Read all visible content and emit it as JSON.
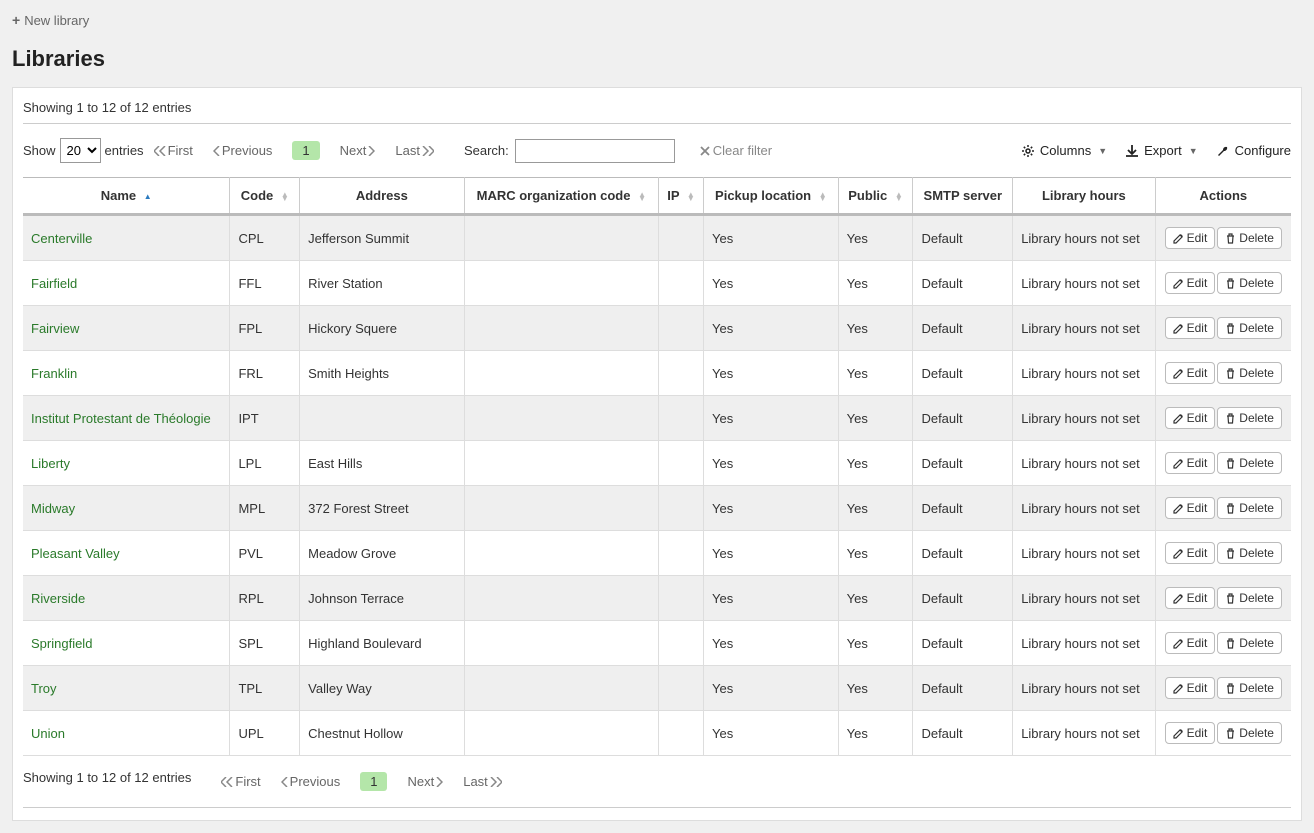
{
  "toolbar": {
    "new_library_label": "New library"
  },
  "page_title": "Libraries",
  "info_text": "Showing 1 to 12 of 12 entries",
  "show_entries": {
    "prefix": "Show",
    "suffix": "entries",
    "value": "20"
  },
  "pager": {
    "first": "First",
    "previous": "Previous",
    "current": "1",
    "next": "Next",
    "last": "Last"
  },
  "search": {
    "label": "Search:",
    "value": ""
  },
  "clear_filter_label": "Clear filter",
  "columns_btn": "Columns",
  "export_btn": "Export",
  "configure_btn": "Configure",
  "headers": {
    "name": "Name",
    "code": "Code",
    "address": "Address",
    "marc": "MARC organization code",
    "ip": "IP",
    "pickup": "Pickup location",
    "public": "Public",
    "smtp": "SMTP server",
    "hours": "Library hours",
    "actions": "Actions"
  },
  "action_labels": {
    "edit": "Edit",
    "delete": "Delete"
  },
  "rows": [
    {
      "name": "Centerville",
      "code": "CPL",
      "address": "Jefferson Summit",
      "marc": "",
      "ip": "",
      "pickup": "Yes",
      "public": "Yes",
      "smtp": "Default",
      "hours": "Library hours not set"
    },
    {
      "name": "Fairfield",
      "code": "FFL",
      "address": "River Station",
      "marc": "",
      "ip": "",
      "pickup": "Yes",
      "public": "Yes",
      "smtp": "Default",
      "hours": "Library hours not set"
    },
    {
      "name": "Fairview",
      "code": "FPL",
      "address": "Hickory Squere",
      "marc": "",
      "ip": "",
      "pickup": "Yes",
      "public": "Yes",
      "smtp": "Default",
      "hours": "Library hours not set"
    },
    {
      "name": "Franklin",
      "code": "FRL",
      "address": "Smith Heights",
      "marc": "",
      "ip": "",
      "pickup": "Yes",
      "public": "Yes",
      "smtp": "Default",
      "hours": "Library hours not set"
    },
    {
      "name": "Institut Protestant de Théologie",
      "code": "IPT",
      "address": "",
      "marc": "",
      "ip": "",
      "pickup": "Yes",
      "public": "Yes",
      "smtp": "Default",
      "hours": "Library hours not set"
    },
    {
      "name": "Liberty",
      "code": "LPL",
      "address": "East Hills",
      "marc": "",
      "ip": "",
      "pickup": "Yes",
      "public": "Yes",
      "smtp": "Default",
      "hours": "Library hours not set"
    },
    {
      "name": "Midway",
      "code": "MPL",
      "address": "372 Forest Street",
      "marc": "",
      "ip": "",
      "pickup": "Yes",
      "public": "Yes",
      "smtp": "Default",
      "hours": "Library hours not set"
    },
    {
      "name": "Pleasant Valley",
      "code": "PVL",
      "address": "Meadow Grove",
      "marc": "",
      "ip": "",
      "pickup": "Yes",
      "public": "Yes",
      "smtp": "Default",
      "hours": "Library hours not set"
    },
    {
      "name": "Riverside",
      "code": "RPL",
      "address": "Johnson Terrace",
      "marc": "",
      "ip": "",
      "pickup": "Yes",
      "public": "Yes",
      "smtp": "Default",
      "hours": "Library hours not set"
    },
    {
      "name": "Springfield",
      "code": "SPL",
      "address": "Highland Boulevard",
      "marc": "",
      "ip": "",
      "pickup": "Yes",
      "public": "Yes",
      "smtp": "Default",
      "hours": "Library hours not set"
    },
    {
      "name": "Troy",
      "code": "TPL",
      "address": "Valley Way",
      "marc": "",
      "ip": "",
      "pickup": "Yes",
      "public": "Yes",
      "smtp": "Default",
      "hours": "Library hours not set"
    },
    {
      "name": "Union",
      "code": "UPL",
      "address": "Chestnut Hollow",
      "marc": "",
      "ip": "",
      "pickup": "Yes",
      "public": "Yes",
      "smtp": "Default",
      "hours": "Library hours not set"
    }
  ],
  "colors": {
    "link_green": "#2a7a2a",
    "page_pill": "#b4e6a9"
  }
}
